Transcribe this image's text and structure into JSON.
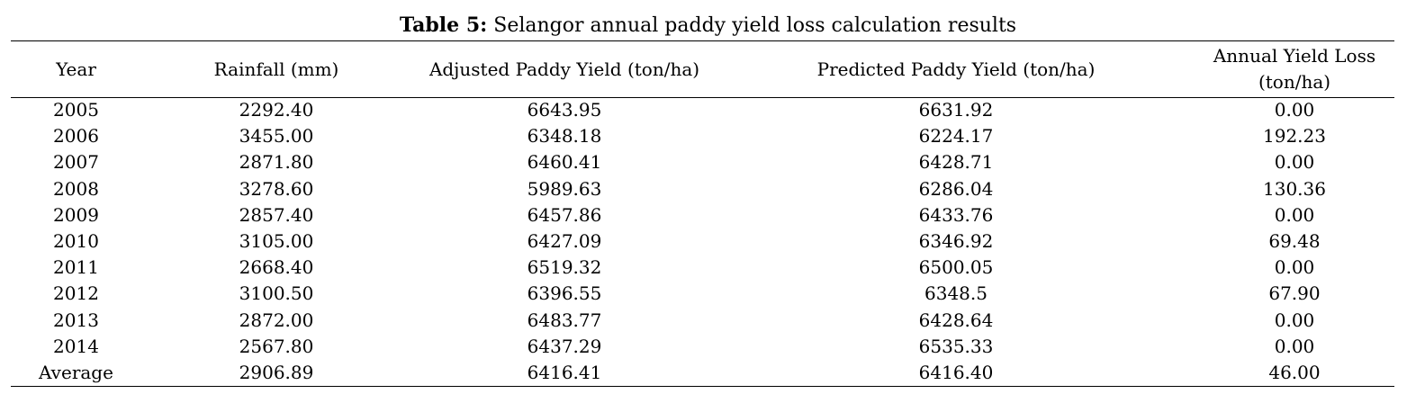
{
  "caption": {
    "label": "Table 5:",
    "title": "Selangor annual paddy yield loss calculation results"
  },
  "table": {
    "headers": [
      "Year",
      "Rainfall (mm)",
      "Adjusted Paddy Yield (ton/ha)",
      "Predicted Paddy Yield (ton/ha)",
      "Annual Yield Loss (ton/ha)"
    ],
    "rows": [
      [
        "2005",
        "2292.40",
        "6643.95",
        "6631.92",
        "0.00"
      ],
      [
        "2006",
        "3455.00",
        "6348.18",
        "6224.17",
        "192.23"
      ],
      [
        "2007",
        "2871.80",
        "6460.41",
        "6428.71",
        "0.00"
      ],
      [
        "2008",
        "3278.60",
        "5989.63",
        "6286.04",
        "130.36"
      ],
      [
        "2009",
        "2857.40",
        "6457.86",
        "6433.76",
        "0.00"
      ],
      [
        "2010",
        "3105.00",
        "6427.09",
        "6346.92",
        "69.48"
      ],
      [
        "2011",
        "2668.40",
        "6519.32",
        "6500.05",
        "0.00"
      ],
      [
        "2012",
        "3100.50",
        "6396.55",
        "6348.5",
        "67.90"
      ],
      [
        "2013",
        "2872.00",
        "6483.77",
        "6428.64",
        "0.00"
      ],
      [
        "2014",
        "2567.80",
        "6437.29",
        "6535.33",
        "0.00"
      ],
      [
        "Average",
        "2906.89",
        "6416.41",
        "6416.40",
        "46.00"
      ]
    ]
  }
}
